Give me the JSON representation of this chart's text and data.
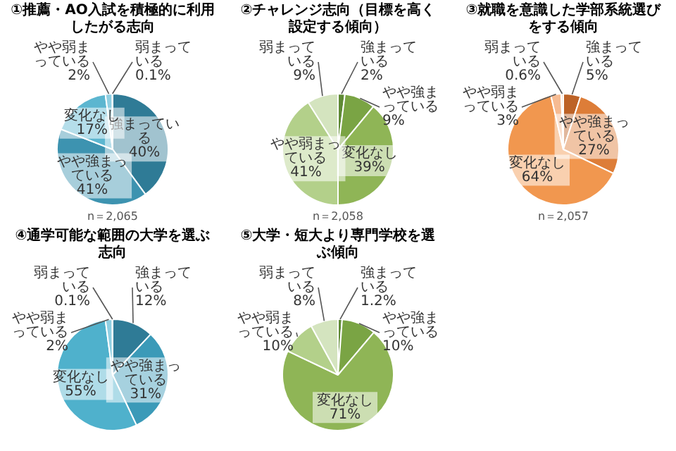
{
  "chart_data": [
    {
      "type": "pie",
      "title": "①推薦・AO入試を積極的に利用したがる志向",
      "categories": [
        "強まっている",
        "やや強まっている",
        "変化なし",
        "やや弱まっている",
        "弱まっている"
      ],
      "values": [
        40,
        41,
        17,
        2,
        0.1
      ],
      "value_labels": [
        "40%",
        "41%",
        "17%",
        "2%",
        "0.1%"
      ],
      "colors": [
        "#2f7b96",
        "#3d93b0",
        "#5cb6d0",
        "#8fcfe2",
        "#c8e6ef"
      ],
      "legend": false,
      "annotations": [
        "n＝2,065"
      ]
    },
    {
      "type": "pie",
      "title": "②チャレンジ志向（目標を高く設定する傾向）",
      "categories": [
        "強まっている",
        "やや強まっている",
        "変化なし",
        "やや弱まっている",
        "弱まっている"
      ],
      "values": [
        2,
        9,
        39,
        41,
        9
      ],
      "value_labels": [
        "2%",
        "9%",
        "39%",
        "41%",
        "9%"
      ],
      "colors": [
        "#5f8a35",
        "#7aa444",
        "#8fb556",
        "#b3d08a",
        "#d4e4bf"
      ],
      "legend": false,
      "annotations": [
        "n＝2,058"
      ]
    },
    {
      "type": "pie",
      "title": "③就職を意識した学部系統選びをする傾向",
      "categories": [
        "強まっている",
        "やや強まっている",
        "変化なし",
        "やや弱まっている",
        "弱まっている"
      ],
      "values": [
        5,
        27,
        64,
        3,
        0.6
      ],
      "value_labels": [
        "5%",
        "27%",
        "64%",
        "3%",
        "0.6%"
      ],
      "colors": [
        "#bd6327",
        "#dd7d38",
        "#f1974f",
        "#f6bb92",
        "#fadcc6"
      ],
      "legend": false,
      "annotations": [
        "n＝2,057"
      ]
    },
    {
      "type": "pie",
      "title": "④通学可能な範囲の大学を選ぶ志向",
      "categories": [
        "強まっている",
        "やや強まっている",
        "変化なし",
        "やや弱まっている",
        "弱まっている"
      ],
      "values": [
        12,
        31,
        55,
        2,
        0.1
      ],
      "value_labels": [
        "12%",
        "31%",
        "55%",
        "2%",
        "0.1%"
      ],
      "colors": [
        "#2f7b96",
        "#3b9ab8",
        "#4fb1cc",
        "#8fcfe2",
        "#c8e6ef"
      ],
      "legend": false
    },
    {
      "type": "pie",
      "title": "⑤大学・短大より専門学校を選ぶ傾向",
      "categories": [
        "強まっている",
        "やや強まっている",
        "変化なし",
        "やや弱まっている",
        "弱まっている"
      ],
      "values": [
        1.2,
        10,
        71,
        10,
        8
      ],
      "value_labels": [
        "1.2%",
        "10%",
        "71%",
        "10%",
        "8%"
      ],
      "colors": [
        "#5f8a35",
        "#7aa444",
        "#8fb556",
        "#b3d08a",
        "#d4e4bf"
      ],
      "legend": false
    }
  ]
}
